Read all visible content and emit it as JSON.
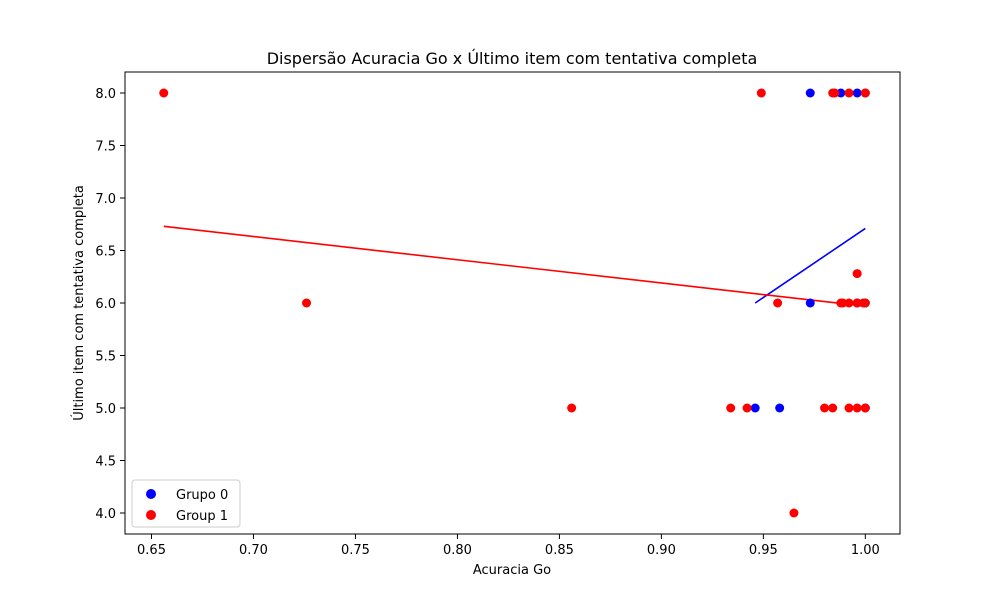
{
  "chart_data": {
    "type": "scatter",
    "title": "Dispersão Acuracia Go x Último item com tentativa completa",
    "xlabel": "Acuracia Go",
    "ylabel": "Último item com tentativa completa",
    "xlim": [
      0.637,
      1.017
    ],
    "ylim": [
      3.8,
      8.2
    ],
    "xticks": [
      0.65,
      0.7,
      0.75,
      0.8,
      0.85,
      0.9,
      0.95,
      1.0
    ],
    "xtick_labels": [
      "0.65",
      "0.70",
      "0.75",
      "0.80",
      "0.85",
      "0.90",
      "0.95",
      "1.00"
    ],
    "yticks": [
      4.0,
      4.5,
      5.0,
      5.5,
      6.0,
      6.5,
      7.0,
      7.5,
      8.0
    ],
    "ytick_labels": [
      "4.0",
      "4.5",
      "5.0",
      "5.5",
      "6.0",
      "6.5",
      "7.0",
      "7.5",
      "8.0"
    ],
    "grid": false,
    "legend_position": "bottom-left",
    "series": [
      {
        "name": "Grupo 0",
        "color": "#0000ff",
        "points": [
          [
            0.973,
            8.0
          ],
          [
            0.988,
            8.0
          ],
          [
            0.996,
            8.0
          ],
          [
            1.0,
            8.0
          ],
          [
            0.973,
            6.0
          ],
          [
            0.996,
            6.0
          ],
          [
            1.0,
            6.0
          ],
          [
            0.946,
            5.0
          ],
          [
            0.958,
            5.0
          ],
          [
            1.0,
            5.0
          ]
        ],
        "trend_line": [
          [
            0.946,
            6.0
          ],
          [
            1.0,
            6.71
          ]
        ]
      },
      {
        "name": "Group 1",
        "color": "#ff0000",
        "points": [
          [
            0.656,
            8.0
          ],
          [
            0.949,
            8.0
          ],
          [
            0.984,
            8.0
          ],
          [
            0.985,
            8.0
          ],
          [
            0.992,
            8.0
          ],
          [
            1.0,
            8.0
          ],
          [
            0.996,
            6.28
          ],
          [
            0.726,
            6.0
          ],
          [
            0.957,
            6.0
          ],
          [
            0.988,
            6.0
          ],
          [
            0.989,
            6.0
          ],
          [
            0.992,
            6.0
          ],
          [
            0.996,
            6.0
          ],
          [
            0.999,
            6.0
          ],
          [
            1.0,
            6.0
          ],
          [
            0.856,
            5.0
          ],
          [
            0.934,
            5.0
          ],
          [
            0.942,
            5.0
          ],
          [
            0.98,
            5.0
          ],
          [
            0.984,
            5.0
          ],
          [
            0.992,
            5.0
          ],
          [
            0.996,
            5.0
          ],
          [
            1.0,
            5.0
          ],
          [
            0.965,
            4.0
          ]
        ],
        "trend_line": [
          [
            0.656,
            6.73
          ],
          [
            1.0,
            5.97
          ]
        ]
      }
    ]
  }
}
